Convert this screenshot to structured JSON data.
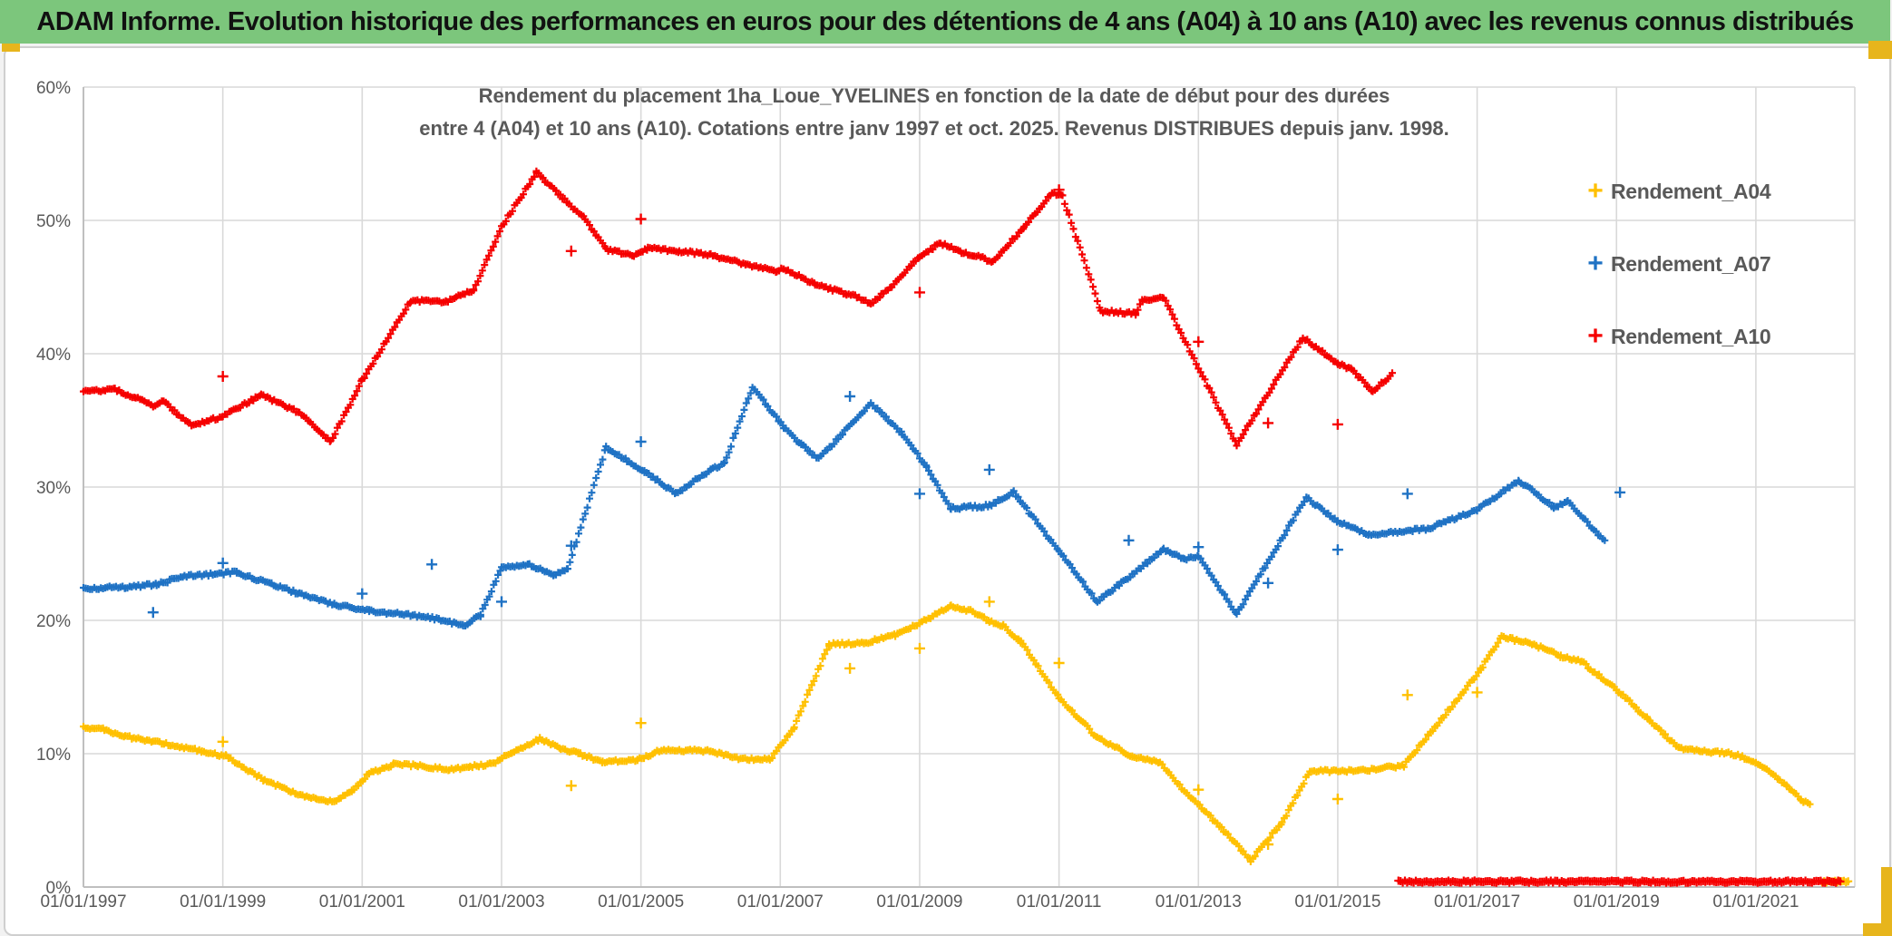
{
  "header": {
    "title": "ADAM Informe. Evolution historique des performances en euros pour des détentions de 4 ans (A04) à 10 ans (A10) avec les revenus connus distribués",
    "bg_color": "#7CC67C"
  },
  "chart_data": {
    "type": "scatter",
    "title_line1": "Rendement du placement 1ha_Loue_YVELINES en fonction de la date de début pour des durées",
    "title_line2": "entre 4 (A04) et 10 ans (A10). Cotations entre janv 1997 et oct. 2025. Revenus DISTRIBUES depuis janv. 1998.",
    "xlabel": "",
    "ylabel": "",
    "ylim": [
      0,
      60
    ],
    "xlim": [
      1997,
      2022.4
    ],
    "grid": true,
    "legend_position": "right",
    "x_ticks": [
      "01/01/1997",
      "01/01/1999",
      "01/01/2001",
      "01/01/2003",
      "01/01/2005",
      "01/01/2007",
      "01/01/2009",
      "01/01/2011",
      "01/01/2013",
      "01/01/2015",
      "01/01/2017",
      "01/01/2019",
      "01/01/2021"
    ],
    "x_tick_years": [
      1997,
      1999,
      2001,
      2003,
      2005,
      2007,
      2009,
      2011,
      2013,
      2015,
      2017,
      2019,
      2021
    ],
    "y_ticks": [
      "0%",
      "10%",
      "20%",
      "30%",
      "40%",
      "50%",
      "60%"
    ],
    "y_tick_values": [
      0,
      10,
      20,
      30,
      40,
      50,
      60
    ],
    "colors": {
      "grid": "#d9d9d9",
      "axis": "#bfbfbf",
      "tick_text": "#595959"
    },
    "legend": [
      {
        "label": "Rendement_A04",
        "color": "#FFC000"
      },
      {
        "label": "Rendement_A07",
        "color": "#1F72C4"
      },
      {
        "label": "Rendement_A10",
        "color": "#F50000"
      }
    ],
    "series": [
      {
        "name": "Rendement_A04",
        "color": "#FFC000",
        "anchors": [
          [
            1997.0,
            12.0
          ],
          [
            1997.3,
            11.8
          ],
          [
            1997.6,
            11.3
          ],
          [
            1998.0,
            10.9
          ],
          [
            1998.35,
            10.55
          ],
          [
            1998.7,
            10.2
          ],
          [
            1999.05,
            9.8
          ],
          [
            1999.6,
            8.0
          ],
          [
            2000.05,
            7.0
          ],
          [
            2000.35,
            6.6
          ],
          [
            2000.6,
            6.35
          ],
          [
            2000.85,
            7.2
          ],
          [
            2001.1,
            8.5
          ],
          [
            2001.45,
            9.2
          ],
          [
            2001.8,
            9.1
          ],
          [
            2002.25,
            8.8
          ],
          [
            2002.55,
            9.05
          ],
          [
            2002.85,
            9.2
          ],
          [
            2003.15,
            10.1
          ],
          [
            2003.55,
            11.1
          ],
          [
            2003.85,
            10.4
          ],
          [
            2004.1,
            10.0
          ],
          [
            2004.45,
            9.4
          ],
          [
            2004.95,
            9.5
          ],
          [
            2005.3,
            10.3
          ],
          [
            2006.0,
            10.2
          ],
          [
            2006.4,
            9.65
          ],
          [
            2006.85,
            9.55
          ],
          [
            2007.2,
            12.0
          ],
          [
            2007.7,
            18.2
          ],
          [
            2008.2,
            18.3
          ],
          [
            2008.65,
            18.9
          ],
          [
            2009.0,
            19.8
          ],
          [
            2009.45,
            21.1
          ],
          [
            2009.8,
            20.6
          ],
          [
            2010.0,
            19.9
          ],
          [
            2010.2,
            19.6
          ],
          [
            2010.45,
            18.4
          ],
          [
            2011.0,
            14.2
          ],
          [
            2011.55,
            11.2
          ],
          [
            2012.05,
            9.8
          ],
          [
            2012.45,
            9.3
          ],
          [
            2012.8,
            7.2
          ],
          [
            2013.3,
            4.6
          ],
          [
            2013.75,
            2.0
          ],
          [
            2014.2,
            4.8
          ],
          [
            2014.6,
            8.7
          ],
          [
            2015.3,
            8.7
          ],
          [
            2015.95,
            9.1
          ],
          [
            2016.3,
            11.4
          ],
          [
            2016.8,
            14.6
          ],
          [
            2017.05,
            16.3
          ],
          [
            2017.35,
            18.8
          ],
          [
            2017.85,
            18.1
          ],
          [
            2018.2,
            17.3
          ],
          [
            2018.5,
            16.9
          ],
          [
            2019.0,
            14.8
          ],
          [
            2019.45,
            12.6
          ],
          [
            2019.9,
            10.4
          ],
          [
            2020.2,
            10.2
          ],
          [
            2020.65,
            10.0
          ],
          [
            2021.0,
            9.4
          ],
          [
            2021.45,
            7.6
          ],
          [
            2021.65,
            6.5
          ],
          [
            2021.79,
            6.2
          ]
        ],
        "zero_run": [
          2021.95,
          2022.33,
          0.4
        ],
        "outliers": [
          [
            1999.0,
            10.9
          ],
          [
            2004.0,
            7.6
          ],
          [
            2005.0,
            12.3
          ],
          [
            2008.0,
            16.4
          ],
          [
            2009.0,
            17.9
          ],
          [
            2010.0,
            21.4
          ],
          [
            2011.0,
            16.8
          ],
          [
            2013.0,
            7.3
          ],
          [
            2014.0,
            3.2
          ],
          [
            2015.0,
            6.6
          ],
          [
            2016.0,
            14.4
          ],
          [
            2017.0,
            14.6
          ]
        ]
      },
      {
        "name": "Rendement_A07",
        "color": "#1F72C4",
        "anchors": [
          [
            1997.0,
            22.4
          ],
          [
            1997.6,
            22.5
          ],
          [
            1998.05,
            22.7
          ],
          [
            1998.45,
            23.3
          ],
          [
            1999.2,
            23.6
          ],
          [
            1999.7,
            22.7
          ],
          [
            2000.1,
            22.0
          ],
          [
            2000.6,
            21.2
          ],
          [
            2001.1,
            20.7
          ],
          [
            2001.6,
            20.45
          ],
          [
            2002.1,
            20.1
          ],
          [
            2002.45,
            19.6
          ],
          [
            2002.7,
            20.4
          ],
          [
            2003.0,
            24.0
          ],
          [
            2003.4,
            24.2
          ],
          [
            2003.75,
            23.4
          ],
          [
            2003.95,
            23.9
          ],
          [
            2004.5,
            33.0
          ],
          [
            2004.8,
            32.0
          ],
          [
            2005.05,
            31.2
          ],
          [
            2005.5,
            29.5
          ],
          [
            2006.0,
            31.3
          ],
          [
            2006.2,
            31.8
          ],
          [
            2006.6,
            37.5
          ],
          [
            2007.05,
            34.5
          ],
          [
            2007.3,
            33.2
          ],
          [
            2007.55,
            32.1
          ],
          [
            2008.3,
            36.3
          ],
          [
            2008.75,
            34.0
          ],
          [
            2009.1,
            31.5
          ],
          [
            2009.45,
            28.4
          ],
          [
            2010.0,
            28.6
          ],
          [
            2010.35,
            29.6
          ],
          [
            2011.0,
            25.2
          ],
          [
            2011.55,
            21.4
          ],
          [
            2012.5,
            25.3
          ],
          [
            2012.8,
            24.6
          ],
          [
            2013.0,
            24.8
          ],
          [
            2013.55,
            20.5
          ],
          [
            2014.55,
            29.2
          ],
          [
            2015.0,
            27.4
          ],
          [
            2015.45,
            26.4
          ],
          [
            2016.3,
            26.9
          ],
          [
            2017.0,
            28.3
          ],
          [
            2017.6,
            30.5
          ],
          [
            2018.1,
            28.5
          ],
          [
            2018.3,
            28.9
          ],
          [
            2018.84,
            25.9
          ]
        ],
        "zero_run": null,
        "outliers": [
          [
            1998.0,
            20.6
          ],
          [
            1999.0,
            24.3
          ],
          [
            2001.0,
            22.0
          ],
          [
            2002.0,
            24.2
          ],
          [
            2003.0,
            21.4
          ],
          [
            2004.0,
            25.6
          ],
          [
            2005.0,
            33.4
          ],
          [
            2008.0,
            36.8
          ],
          [
            2009.0,
            29.5
          ],
          [
            2010.0,
            31.3
          ],
          [
            2012.0,
            26.0
          ],
          [
            2013.0,
            25.5
          ],
          [
            2014.0,
            22.8
          ],
          [
            2015.0,
            25.3
          ],
          [
            2016.0,
            29.5
          ],
          [
            2019.05,
            29.6
          ]
        ]
      },
      {
        "name": "Rendement_A10",
        "color": "#F50000",
        "anchors": [
          [
            1997.0,
            37.2
          ],
          [
            1997.45,
            37.3
          ],
          [
            1997.75,
            36.7
          ],
          [
            1998.0,
            36.1
          ],
          [
            1998.15,
            36.4
          ],
          [
            1998.55,
            34.6
          ],
          [
            1999.0,
            35.3
          ],
          [
            1999.55,
            36.9
          ],
          [
            2000.1,
            35.6
          ],
          [
            2000.55,
            33.4
          ],
          [
            2001.0,
            38.0
          ],
          [
            2001.7,
            44.0
          ],
          [
            2002.2,
            43.9
          ],
          [
            2002.35,
            44.3
          ],
          [
            2002.6,
            44.8
          ],
          [
            2003.0,
            49.5
          ],
          [
            2003.5,
            53.6
          ],
          [
            2004.05,
            50.8
          ],
          [
            2004.2,
            50.1
          ],
          [
            2004.5,
            47.8
          ],
          [
            2004.9,
            47.4
          ],
          [
            2005.1,
            47.9
          ],
          [
            2005.55,
            47.7
          ],
          [
            2006.0,
            47.4
          ],
          [
            2006.5,
            46.7
          ],
          [
            2006.95,
            46.2
          ],
          [
            2007.05,
            46.4
          ],
          [
            2007.5,
            45.2
          ],
          [
            2007.95,
            44.5
          ],
          [
            2008.1,
            44.3
          ],
          [
            2008.3,
            43.7
          ],
          [
            2008.45,
            44.4
          ],
          [
            2008.6,
            45.0
          ],
          [
            2009.0,
            47.3
          ],
          [
            2009.3,
            48.3
          ],
          [
            2009.6,
            47.6
          ],
          [
            2009.78,
            47.4
          ],
          [
            2010.05,
            46.9
          ],
          [
            2010.5,
            49.5
          ],
          [
            2010.9,
            52.1
          ],
          [
            2011.05,
            51.8
          ],
          [
            2011.6,
            43.2
          ],
          [
            2012.1,
            43.0
          ],
          [
            2012.2,
            44.0
          ],
          [
            2012.5,
            44.2
          ],
          [
            2013.55,
            33.2
          ],
          [
            2014.5,
            41.2
          ],
          [
            2015.0,
            39.3
          ],
          [
            2015.2,
            38.8
          ],
          [
            2015.5,
            37.2
          ],
          [
            2015.79,
            38.5
          ]
        ],
        "zero_run": [
          2015.87,
          2022.22,
          0.4
        ],
        "outliers": [
          [
            1999.0,
            38.3
          ],
          [
            2004.0,
            47.7
          ],
          [
            2005.0,
            50.1
          ],
          [
            2009.0,
            44.6
          ],
          [
            2011.0,
            52.3
          ],
          [
            2013.0,
            40.9
          ],
          [
            2014.0,
            34.8
          ],
          [
            2015.0,
            34.7
          ]
        ]
      }
    ]
  }
}
